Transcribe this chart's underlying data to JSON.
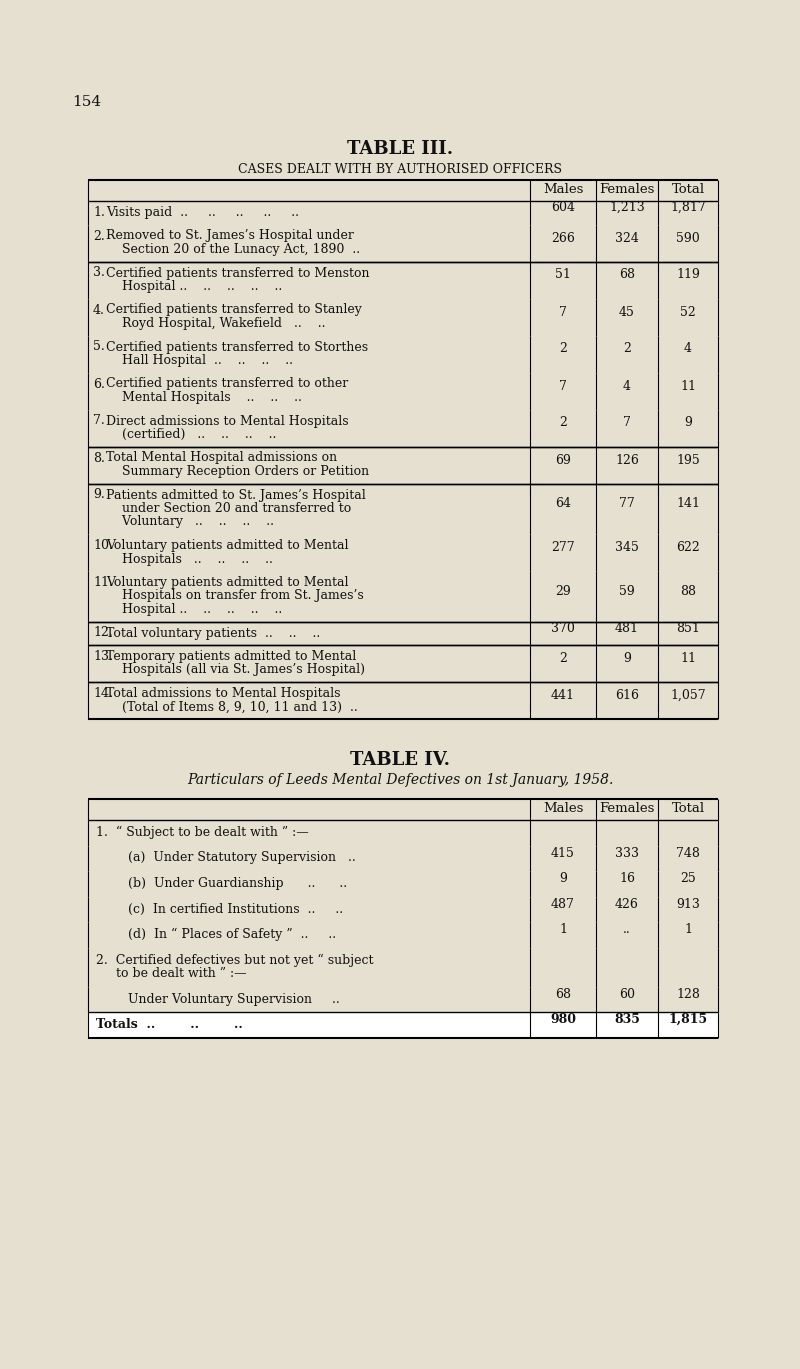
{
  "bg_color": "#e5e0d0",
  "page_num": "154",
  "t3_title": "TABLE III.",
  "t3_subtitle": "Cases dealt with by Authorised Officers",
  "t4_title": "TABLE IV.",
  "t4_subtitle": "Particulars of Leeds Mental Defectives on 1st January, 1958.",
  "t3_rows": [
    {
      "num": "1.",
      "lines": [
        "Visits paid  ..     ..     ..     ..     .."
      ],
      "males": "604",
      "females": "1,213",
      "total": "1,817",
      "border_top": false,
      "border_bot": false,
      "thick_top": false,
      "thick_bot": false
    },
    {
      "num": "2.",
      "lines": [
        "Removed to St. James’s Hospital under",
        "    Section 20 of the Lunacy Act, 1890  .."
      ],
      "males": "266",
      "females": "324",
      "total": "590",
      "border_top": false,
      "border_bot": true,
      "thick_top": false,
      "thick_bot": false
    },
    {
      "num": "3.",
      "lines": [
        "Certified patients transferred to Menston",
        "    Hospital ..    ..    ..    ..    .."
      ],
      "males": "51",
      "females": "68",
      "total": "119",
      "border_top": true,
      "border_bot": false,
      "thick_top": false,
      "thick_bot": false
    },
    {
      "num": "4.",
      "lines": [
        "Certified patients transferred to Stanley",
        "    Royd Hospital, Wakefield   ..    .."
      ],
      "males": "7",
      "females": "45",
      "total": "52",
      "border_top": false,
      "border_bot": false,
      "thick_top": false,
      "thick_bot": false
    },
    {
      "num": "5.",
      "lines": [
        "Certified patients transferred to Storthes",
        "    Hall Hospital  ..    ..    ..    .."
      ],
      "males": "2",
      "females": "2",
      "total": "4",
      "border_top": false,
      "border_bot": false,
      "thick_top": false,
      "thick_bot": false
    },
    {
      "num": "6.",
      "lines": [
        "Certified patients transferred to other",
        "    Mental Hospitals    ..    ..    .."
      ],
      "males": "7",
      "females": "4",
      "total": "11",
      "border_top": false,
      "border_bot": false,
      "thick_top": false,
      "thick_bot": false
    },
    {
      "num": "7.",
      "lines": [
        "Direct admissions to Mental Hospitals",
        "    (certified)   ..    ..    ..    .."
      ],
      "males": "2",
      "females": "7",
      "total": "9",
      "border_top": false,
      "border_bot": true,
      "thick_top": false,
      "thick_bot": false
    },
    {
      "num": "8.",
      "lines": [
        "Total Mental Hospital admissions on",
        "    Summary Reception Orders or Petition"
      ],
      "males": "69",
      "females": "126",
      "total": "195",
      "border_top": true,
      "border_bot": true,
      "thick_top": false,
      "thick_bot": false
    },
    {
      "num": "9.",
      "lines": [
        "Patients admitted to St. James’s Hospital",
        "    under Section 20 and transferred to",
        "    Voluntary   ..    ..    ..    .."
      ],
      "males": "64",
      "females": "77",
      "total": "141",
      "border_top": true,
      "border_bot": false,
      "thick_top": false,
      "thick_bot": false
    },
    {
      "num": "10.",
      "lines": [
        "Voluntary patients admitted to Mental",
        "    Hospitals   ..    ..    ..    .."
      ],
      "males": "277",
      "females": "345",
      "total": "622",
      "border_top": false,
      "border_bot": false,
      "thick_top": false,
      "thick_bot": false
    },
    {
      "num": "11.",
      "lines": [
        "Voluntary patients admitted to Mental",
        "    Hospitals on transfer from St. James’s",
        "    Hospital ..    ..    ..    ..    .."
      ],
      "males": "29",
      "females": "59",
      "total": "88",
      "border_top": false,
      "border_bot": true,
      "thick_top": false,
      "thick_bot": false
    },
    {
      "num": "12.",
      "lines": [
        "Total voluntary patients  ..    ..    .."
      ],
      "males": "370",
      "females": "481",
      "total": "851",
      "border_top": true,
      "border_bot": true,
      "thick_top": false,
      "thick_bot": false
    },
    {
      "num": "13.",
      "lines": [
        "Temporary patients admitted to Mental",
        "    Hospitals (all via St. James’s Hospital)"
      ],
      "males": "2",
      "females": "9",
      "total": "11",
      "border_top": true,
      "border_bot": true,
      "thick_top": false,
      "thick_bot": false
    },
    {
      "num": "14.",
      "lines": [
        "Total admissions to Mental Hospitals",
        "    (Total of Items 8, 9, 10, 11 and 13)  .."
      ],
      "males": "441",
      "females": "616",
      "total": "1,057",
      "border_top": true,
      "border_bot": false,
      "thick_top": false,
      "thick_bot": false
    }
  ],
  "t4_rows": [
    {
      "lines": [
        "1.  “ Subject to be dealt with ” :—"
      ],
      "males": "",
      "females": "",
      "total": "",
      "border_bot": false
    },
    {
      "lines": [
        "        (a)  Under Statutory Supervision   .."
      ],
      "males": "415",
      "females": "333",
      "total": "748",
      "border_bot": false
    },
    {
      "lines": [
        "        (b)  Under Guardianship      ..      .."
      ],
      "males": "9",
      "females": "16",
      "total": "25",
      "border_bot": false
    },
    {
      "lines": [
        "        (c)  In certified Institutions  ..     .."
      ],
      "males": "487",
      "females": "426",
      "total": "913",
      "border_bot": false
    },
    {
      "lines": [
        "        (d)  In “ Places of Safety ”  ..     .."
      ],
      "males": "1",
      "females": "..",
      "total": "1",
      "border_bot": false
    },
    {
      "lines": [
        "2.  Certified defectives but not yet “ subject",
        "     to be dealt with ” :—"
      ],
      "males": "",
      "females": "",
      "total": "",
      "border_bot": false
    },
    {
      "lines": [
        "        Under Voluntary Supervision     .."
      ],
      "males": "68",
      "females": "60",
      "total": "128",
      "border_bot": true
    },
    {
      "lines": [
        "Totals  ..        ..        .."
      ],
      "males": "980",
      "females": "835",
      "total": "1,815",
      "border_bot": false,
      "is_totals": true
    }
  ]
}
